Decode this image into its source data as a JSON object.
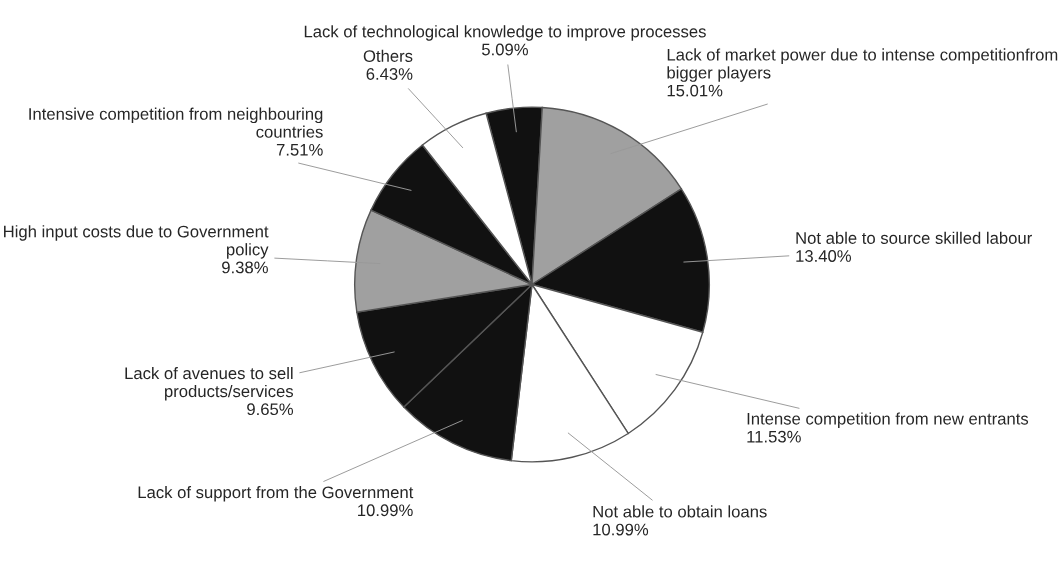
{
  "chart_data": {
    "type": "pie",
    "categories": [
      "Lack of technological knowledge to improve processes",
      "Lack of market power due to intense competitionfrom bigger players",
      "Not able to source skilled labour",
      "Intense competition from new entrants",
      "Not able to obtain loans",
      "Lack of support from the Government",
      "Lack of avenues to sell products/services",
      "High input costs due to Government policy",
      "Intensive competition from neighbouring countries",
      "Others"
    ],
    "values": [
      5.09,
      15.01,
      13.4,
      11.53,
      10.99,
      10.99,
      9.65,
      9.38,
      7.51,
      6.43
    ],
    "value_labels": [
      "5.09%",
      "15.01%",
      "13.40%",
      "11.53%",
      "10.99%",
      "10.99%",
      "9.65%",
      "9.38%",
      "7.51%",
      "6.43%"
    ],
    "colors": [
      "#111111",
      "#a0a0a0",
      "#111111",
      "#ffffff",
      "#ffffff",
      "#111111",
      "#111111",
      "#a0a0a0",
      "#111111",
      "#ffffff"
    ]
  }
}
